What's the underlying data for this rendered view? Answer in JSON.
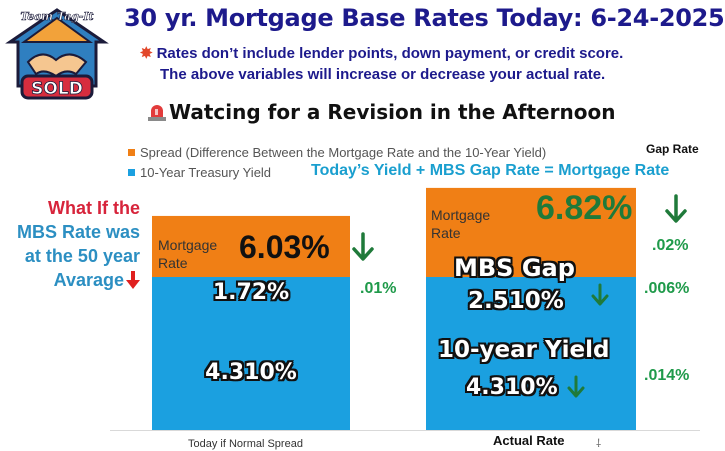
{
  "header": {
    "logo_text_top": "Team Tag-It",
    "logo_text_main": "SOLD",
    "title": "30 yr. Mortgage Base Rates Today: 6-24-2025",
    "note_line1": "Rates don’t include lender points, down payment, or credit score.",
    "note_line2": "The above variables will increase or decrease your actual rate.",
    "headline": "Watcing for a Revision in the Afternoon",
    "colors": {
      "title": "#1d1a8c",
      "spread": "#f07f15",
      "yield": "#1ba0e0",
      "green": "#1f9a4a",
      "red": "#d7243b"
    }
  },
  "annotations": {
    "gap_rate_label": "Gap Rate",
    "formula": "Today’s  Yield +  MBS Gap Rate = Mortgage Rate",
    "what_if": [
      "What If the",
      "MBS Rate was",
      "at the 50 year",
      "Avarage"
    ],
    "mortgage_rate_label_line1": "Mortgage",
    "mortgage_rate_label_line2": "Rate",
    "left_rate": "6.03%",
    "right_rate": "6.82%",
    "change_total": ".02%",
    "change_left_spread": ".01%",
    "change_gap": ".006%",
    "change_yield": ".014%",
    "bar_labels": {
      "left_spread": "1.72%",
      "left_yield": "4.310%",
      "right_gap_title": "MBS Gap",
      "right_gap_value": "2.510%",
      "right_yield_title": "10-year Yield",
      "right_yield_value": "4.310%"
    },
    "actual_rate": "Actual Rate",
    "tick_mark": "⸸"
  },
  "chart_data": {
    "type": "bar",
    "stacked": true,
    "categories": [
      "Today if Normal Spread",
      ""
    ],
    "series": [
      {
        "name": "10-Year Treasury Yield",
        "values": [
          4.31,
          4.31
        ],
        "color": "#1ba0e0"
      },
      {
        "name": "Spread (Difference Between the Mortgage Rate and the 10-Year Yield)",
        "values": [
          1.72,
          2.51
        ],
        "color": "#f07f15"
      }
    ],
    "totals": [
      6.03,
      6.82
    ],
    "legend_position": "top-left",
    "grid": false
  }
}
